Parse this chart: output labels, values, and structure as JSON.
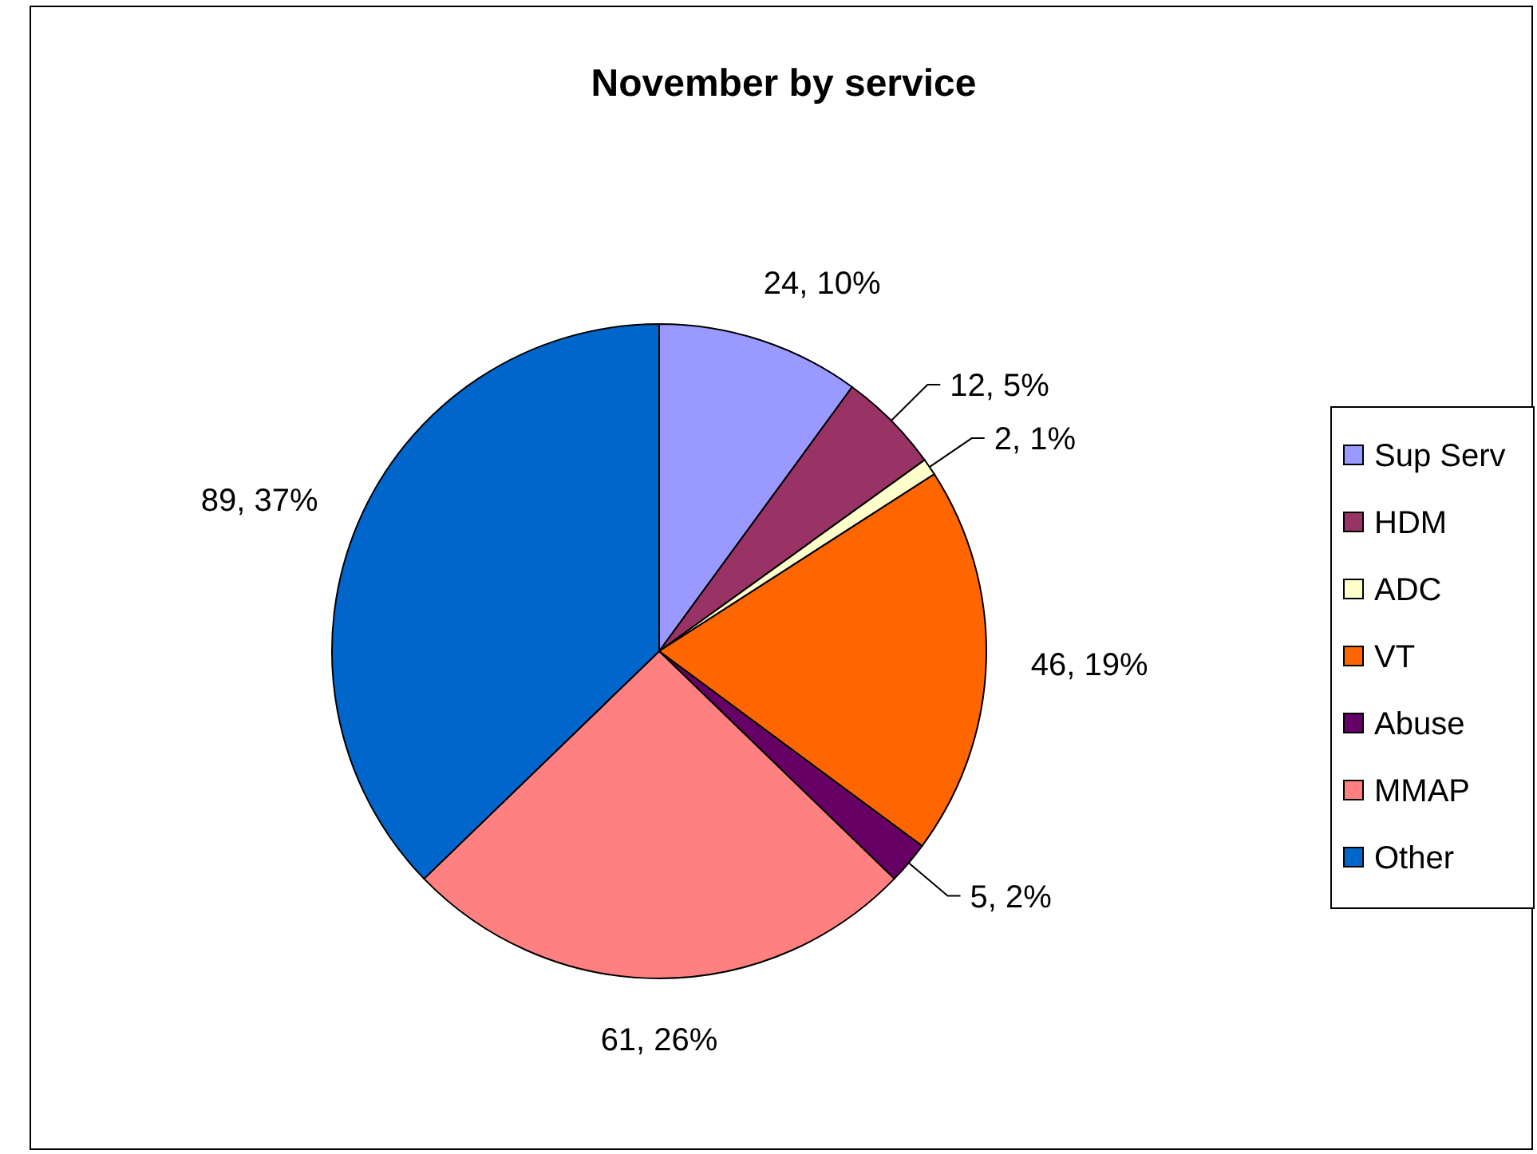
{
  "chart_data": {
    "type": "pie",
    "title": "November by service",
    "categories": [
      "Sup Serv",
      "HDM",
      "ADC",
      "VT",
      "Abuse",
      "MMAP",
      "Other"
    ],
    "values": [
      24,
      12,
      2,
      46,
      5,
      61,
      89
    ],
    "colors": [
      "#9999ff",
      "#993366",
      "#ffffcc",
      "#ff6600",
      "#660066",
      "#ff8080",
      "#0066cc"
    ],
    "value_labels": [
      "24, 10%",
      "12, 5%",
      "2, 1%",
      "46, 19%",
      "5, 2%",
      "61, 26%",
      "89, 37%"
    ],
    "legend": "right"
  }
}
